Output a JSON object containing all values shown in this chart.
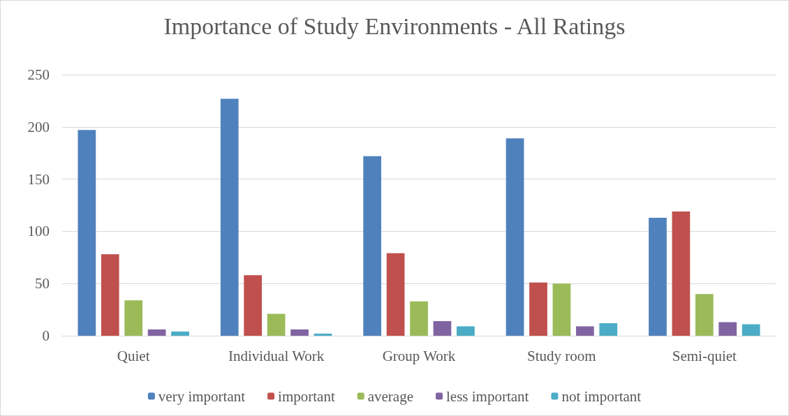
{
  "chart_data": {
    "type": "bar",
    "title": "Importance of Study Environments - All Ratings",
    "categories": [
      "Quiet",
      "Individual Work",
      "Group Work",
      "Study room",
      "Semi-quiet"
    ],
    "series": [
      {
        "name": "very important",
        "color": "#4f81bd",
        "values": [
          197,
          227,
          172,
          189,
          113
        ]
      },
      {
        "name": "important",
        "color": "#c0504d",
        "values": [
          78,
          58,
          79,
          51,
          119
        ]
      },
      {
        "name": "average",
        "color": "#9bbb59",
        "values": [
          34,
          21,
          33,
          50,
          40
        ]
      },
      {
        "name": "less important",
        "color": "#8064a2",
        "values": [
          6,
          6,
          14,
          9,
          13
        ]
      },
      {
        "name": "not important",
        "color": "#4bacc6",
        "values": [
          4,
          2,
          9,
          12,
          11
        ]
      }
    ],
    "ylim": [
      0,
      250
    ],
    "yticks": [
      0,
      50,
      100,
      150,
      200,
      250
    ],
    "grid": "y",
    "legend": "bottom"
  }
}
